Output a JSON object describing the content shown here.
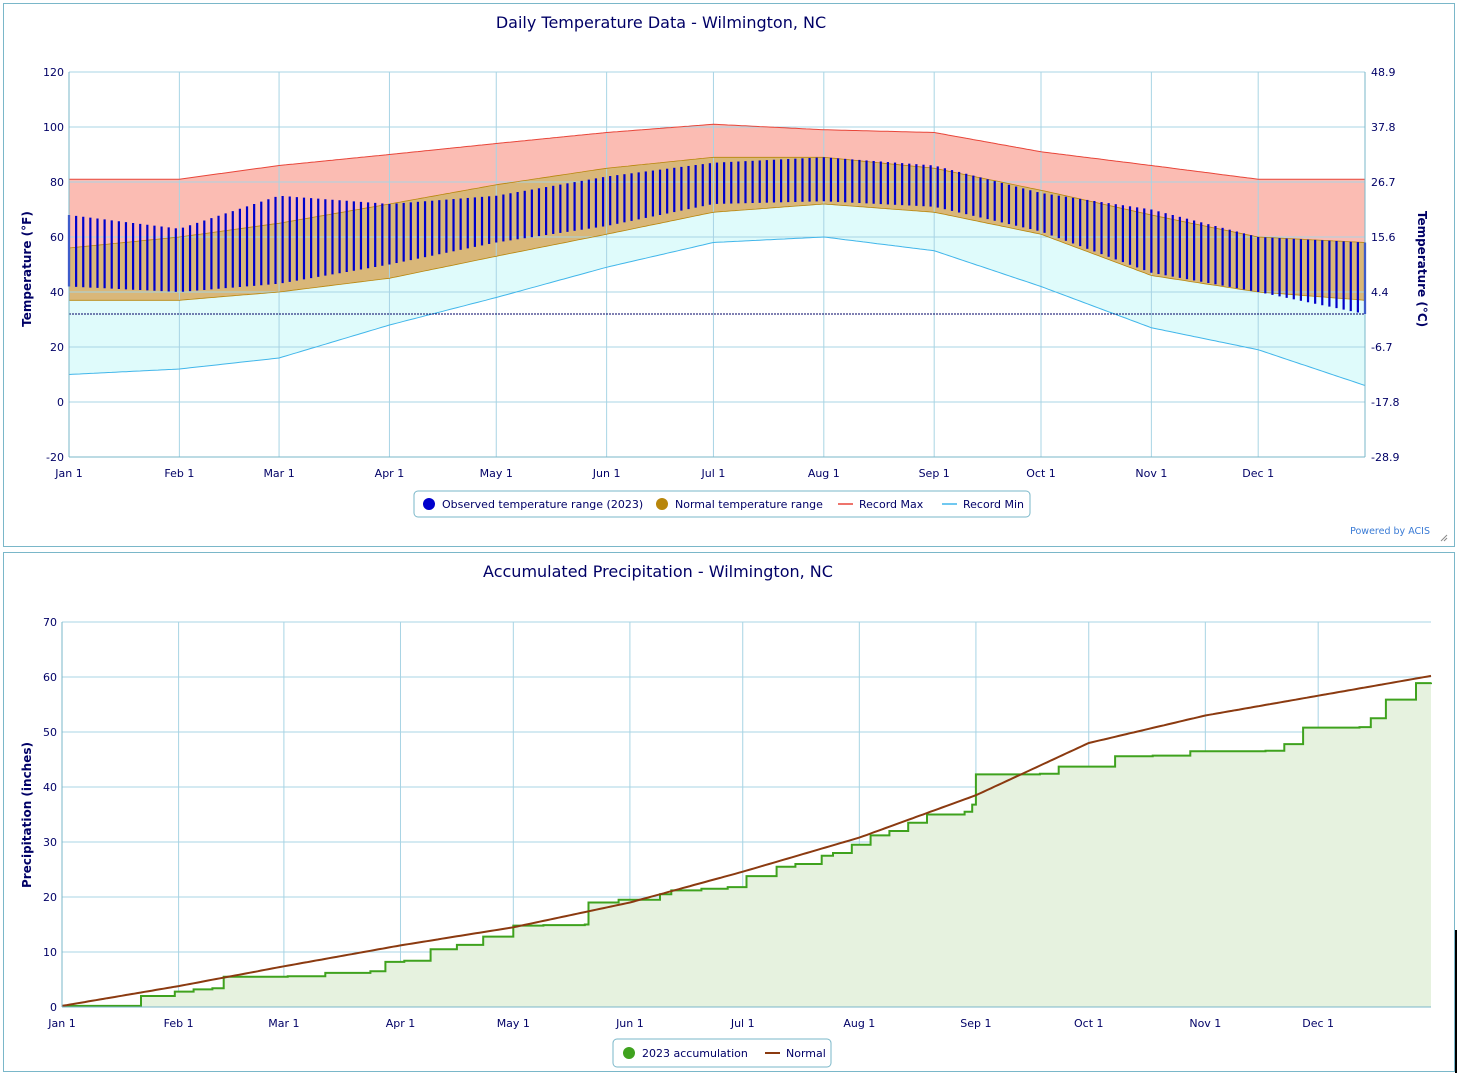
{
  "temperature_chart": {
    "title": "Daily Temperature Data - Wilmington, NC",
    "y_label_left": "Temperature (°F)",
    "y_label_right": "Temperature (°C)",
    "credit": "Powered by ACIS",
    "legend": {
      "observed": "Observed temperature range (2023)",
      "normal": "Normal temperature range",
      "record_max": "Record Max",
      "record_min": "Record Min"
    },
    "colors": {
      "observed": "#0000cc",
      "normal_fill": "#d9b779",
      "normal_line": "#b8860b",
      "record_max": "#e8463a",
      "record_max_fill": "#fbbcb3",
      "record_min": "#41b6ea",
      "record_min_fill": "#dffbfb",
      "freezing": "#000066"
    }
  },
  "precip_chart": {
    "title": "Accumulated Precipitation - Wilmington, NC",
    "y_label": "Precipitation (inches)",
    "legend": {
      "accum": "2023 accumulation",
      "normal": "Normal"
    },
    "colors": {
      "accum": "#3fa21e",
      "accum_fill": "#e6f2df",
      "normal": "#8b3a10"
    }
  },
  "chart_data": [
    {
      "type": "area",
      "title": "Daily Temperature Data - Wilmington, NC",
      "ylabel": "Temperature (°F)",
      "ylabel_right": "Temperature (°C)",
      "ylim": [
        -20,
        120
      ],
      "yticks": [
        -20,
        0,
        20,
        40,
        60,
        80,
        100,
        120
      ],
      "yticks_right": [
        "-28.9",
        "-17.8",
        "-6.7",
        "4.4",
        "15.6",
        "26.7",
        "37.8",
        "48.9"
      ],
      "x_ticks": [
        "Jan 1",
        "Feb 1",
        "Mar 1",
        "Apr 1",
        "May 1",
        "Jun 1",
        "Jul 1",
        "Aug 1",
        "Sep 1",
        "Oct 1",
        "Nov 1",
        "Dec 1"
      ],
      "x_tick_days": [
        0,
        31,
        59,
        90,
        120,
        151,
        181,
        212,
        243,
        273,
        304,
        334
      ],
      "days_in_year": 365,
      "grid": true,
      "freezing_line": 32,
      "legend_position": "bottom",
      "series": {
        "record_max": {
          "name": "Record Max",
          "x": [
            0,
            31,
            59,
            90,
            120,
            151,
            181,
            212,
            243,
            273,
            304,
            334,
            364
          ],
          "y": [
            81,
            81,
            86,
            90,
            94,
            98,
            101,
            99,
            98,
            91,
            86,
            81,
            81
          ]
        },
        "record_min": {
          "name": "Record Min",
          "x": [
            0,
            31,
            59,
            90,
            120,
            151,
            181,
            212,
            243,
            273,
            304,
            334,
            364
          ],
          "y": [
            10,
            12,
            16,
            28,
            38,
            49,
            58,
            60,
            55,
            42,
            27,
            19,
            6
          ]
        },
        "normal_high": {
          "name": "Normal temperature range",
          "x": [
            0,
            31,
            59,
            90,
            120,
            151,
            181,
            212,
            243,
            273,
            304,
            334,
            364
          ],
          "y": [
            56,
            60,
            65,
            72,
            79,
            85,
            89,
            89,
            85,
            77,
            68,
            60,
            58
          ]
        },
        "normal_low": {
          "name": "Normal temperature range",
          "x": [
            0,
            31,
            59,
            90,
            120,
            151,
            181,
            212,
            243,
            273,
            304,
            334,
            364
          ],
          "y": [
            37,
            37,
            40,
            45,
            53,
            61,
            69,
            72,
            69,
            61,
            46,
            40,
            37
          ]
        },
        "observed": {
          "name": "Observed temperature range (2023)",
          "x": [
            0,
            31,
            59,
            90,
            120,
            151,
            181,
            212,
            243,
            273,
            304,
            334,
            364
          ],
          "max": [
            68,
            63,
            75,
            72,
            75,
            82,
            87,
            89,
            86,
            76,
            70,
            60,
            58
          ],
          "min": [
            42,
            40,
            43,
            50,
            58,
            64,
            72,
            73,
            71,
            62,
            47,
            40,
            32
          ]
        }
      }
    },
    {
      "type": "line",
      "title": "Accumulated Precipitation - Wilmington, NC",
      "ylabel": "Precipitation (inches)",
      "ylim": [
        0,
        70
      ],
      "yticks": [
        0,
        10,
        20,
        30,
        40,
        50,
        60,
        70
      ],
      "x_ticks": [
        "Jan 1",
        "Feb 1",
        "Mar 1",
        "Apr 1",
        "May 1",
        "Jun 1",
        "Jul 1",
        "Aug 1",
        "Sep 1",
        "Oct 1",
        "Nov 1",
        "Dec 1"
      ],
      "x_tick_days": [
        0,
        31,
        59,
        90,
        120,
        151,
        181,
        212,
        243,
        273,
        304,
        334
      ],
      "days_in_year": 365,
      "grid": true,
      "legend_position": "bottom",
      "series": [
        {
          "name": "2023 accumulation",
          "x": [
            0,
            20,
            21,
            30,
            35,
            40,
            43,
            60,
            70,
            82,
            86,
            91,
            98,
            105,
            112,
            120,
            128,
            139,
            140,
            148,
            159,
            162,
            170,
            177,
            182,
            190,
            195,
            202,
            205,
            210,
            215,
            220,
            225,
            230,
            240,
            242,
            243,
            260,
            265,
            280,
            290,
            300,
            320,
            325,
            330,
            345,
            348,
            352,
            360,
            364
          ],
          "y": [
            0.2,
            0.2,
            2,
            2.8,
            3.2,
            3.4,
            5.5,
            5.6,
            6.2,
            6.5,
            8.2,
            8.4,
            10.5,
            11.3,
            12.8,
            14.8,
            14.9,
            15.0,
            19.0,
            19.5,
            20.5,
            21.2,
            21.5,
            21.8,
            23.8,
            25.5,
            26.0,
            27.5,
            28.0,
            29.5,
            31.2,
            32.0,
            33.5,
            35.0,
            35.5,
            36.8,
            42.3,
            42.4,
            43.7,
            45.6,
            45.7,
            46.5,
            46.6,
            47.8,
            50.8,
            50.9,
            52.5,
            55.9,
            58.9,
            59.0
          ]
        },
        {
          "name": "Normal",
          "x": [
            0,
            31,
            59,
            90,
            120,
            151,
            181,
            212,
            243,
            273,
            304,
            334,
            364
          ],
          "y": [
            0.2,
            3.8,
            7.4,
            11.2,
            14.5,
            19.0,
            24.6,
            30.8,
            38.5,
            48.0,
            53.0,
            56.6,
            60.2
          ]
        }
      ]
    }
  ]
}
